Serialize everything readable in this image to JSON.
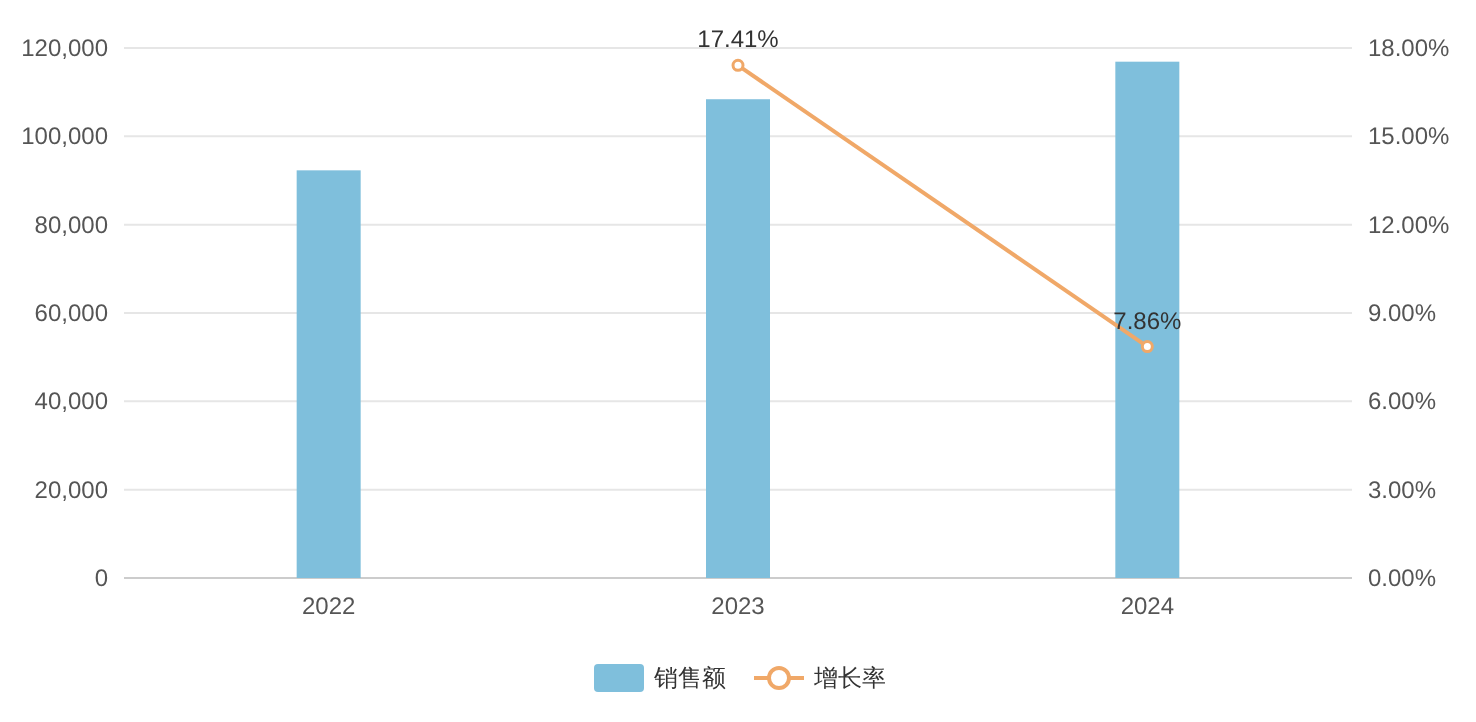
{
  "chart_data": {
    "type": "bar",
    "categories": [
      "2022",
      "2023",
      "2024"
    ],
    "series": [
      {
        "name": "销售额",
        "color": "#7fbfdc",
        "values": [
          92300,
          108400,
          116900
        ]
      },
      {
        "name": "增长率",
        "type": "line",
        "axis": "y2",
        "color": "#f0a868",
        "marker": "circle",
        "values": [
          null,
          17.41,
          7.86
        ],
        "value_labels": [
          null,
          "17.41%",
          "7.86%"
        ]
      }
    ],
    "ylim": [
      0,
      120000
    ],
    "yticks": [
      0,
      {
        "value": 20000,
        "label": "20,000"
      },
      {
        "value": 40000,
        "label": "40,000"
      },
      {
        "value": 60000,
        "label": "60,000"
      },
      {
        "value": 80000,
        "label": "80,000"
      },
      {
        "value": 100000,
        "label": "100,000"
      },
      {
        "value": 120000,
        "label": "120,000"
      }
    ],
    "y2lim": [
      0,
      18
    ],
    "y2ticks": [
      {
        "value": 0,
        "label": "0.00%"
      },
      {
        "value": 3,
        "label": "3.00%"
      },
      {
        "value": 6,
        "label": "6.00%"
      },
      {
        "value": 9,
        "label": "9.00%"
      },
      {
        "value": 12,
        "label": "12.00%"
      },
      {
        "value": 15,
        "label": "15.00%"
      },
      {
        "value": 18,
        "label": "18.00%"
      }
    ],
    "grid": "y",
    "legend": "bottom"
  }
}
